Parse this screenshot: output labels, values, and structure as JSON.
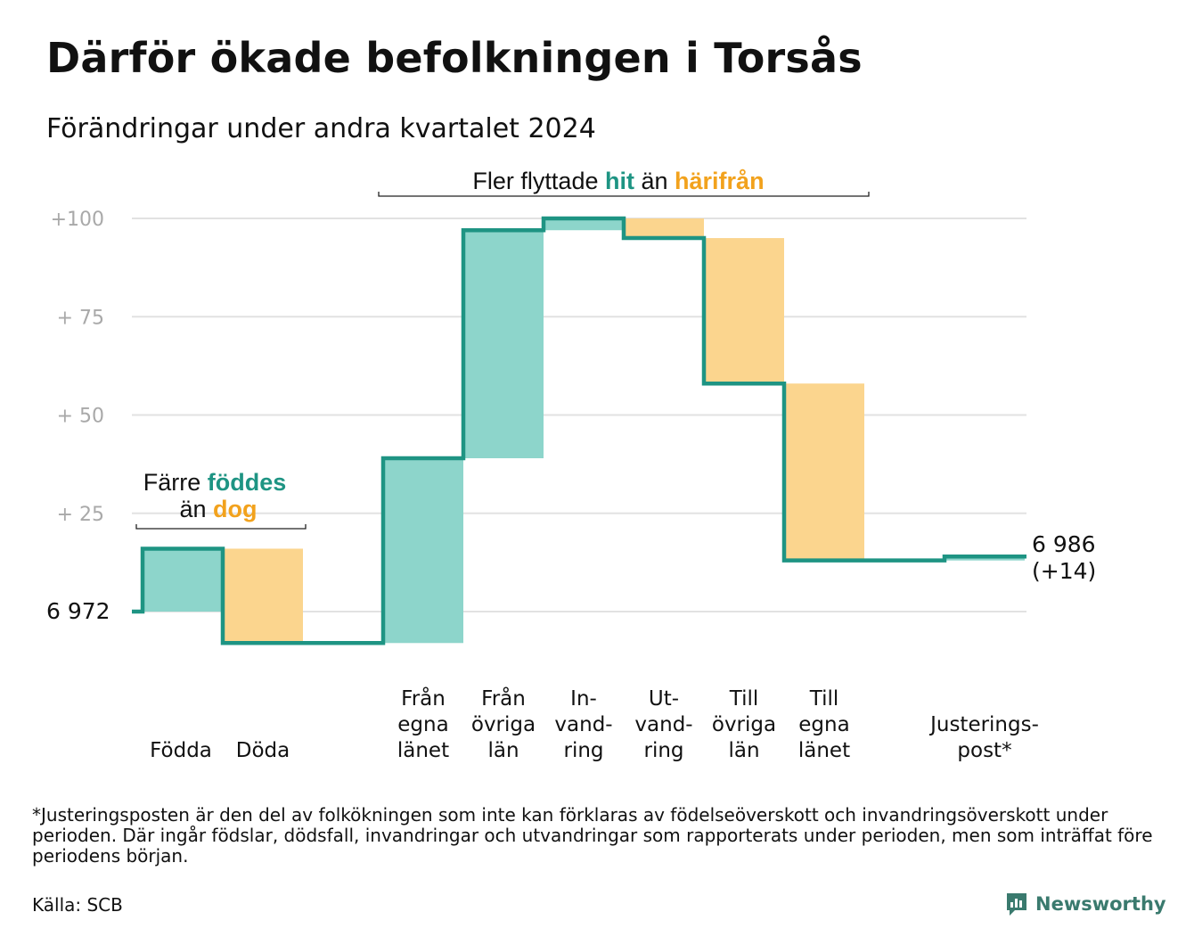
{
  "title": "Därför ökade befolkningen i Torsås",
  "subtitle": "Förändringar under andra kvartalet 2024",
  "footnote": "*Justeringsposten är den del av folkökningen som inte kan förklaras av födelseöverskott och invandringsöverskott under perioden. Där ingår födslar, dödsfall, invandringar och utvandringar som rapporterats under perioden, men som inträffat före periodens början.",
  "source": "Källa: SCB",
  "brand": "Newsworthy",
  "colors": {
    "increase": "#8dd5cb",
    "decrease": "#fbd58e",
    "line": "#1e9483",
    "accent_teal": "#1e9483",
    "accent_orange": "#f2a21d",
    "grid": "#e2e2e2",
    "tick": "#a9a9a9"
  },
  "chart_data": {
    "type": "waterfall",
    "title": "Därför ökade befolkningen i Torsås",
    "subtitle": "Förändringar under andra kvartalet 2024",
    "start": {
      "label": "6  972",
      "value": 6972
    },
    "end": {
      "label_lines": [
        "6 986",
        "(+14)"
      ],
      "value": 6986,
      "change": 14
    },
    "y_ticks": [
      {
        "label": "+100",
        "value": 100
      },
      {
        "label": "+  75",
        "value": 75
      },
      {
        "label": "+  50",
        "value": 50
      },
      {
        "label": "+  25",
        "value": 25
      }
    ],
    "ylim": [
      -15,
      105
    ],
    "grid": true,
    "categories": [
      {
        "label_lines": [
          "Födda"
        ],
        "change": 16
      },
      {
        "label_lines": [
          "Döda"
        ],
        "change": -24
      },
      {
        "label_lines": [
          "Från",
          "egna",
          "länet"
        ],
        "change": 47
      },
      {
        "label_lines": [
          "Från",
          "övriga",
          "län"
        ],
        "change": 58
      },
      {
        "label_lines": [
          "In-",
          "vand-",
          "ring"
        ],
        "change": 3
      },
      {
        "label_lines": [
          "Ut-",
          "vand-",
          "ring"
        ],
        "change": -5
      },
      {
        "label_lines": [
          "Till",
          "övriga",
          "län"
        ],
        "change": -37
      },
      {
        "label_lines": [
          "Till",
          "egna",
          "länet"
        ],
        "change": -45
      },
      {
        "label_lines": [
          "Justerings-",
          "post*"
        ],
        "change": 1
      }
    ],
    "annotations": [
      {
        "id": "births",
        "line1_parts": [
          {
            "text": "Färre ",
            "color": "text"
          },
          {
            "text": "föddes",
            "color": "teal"
          }
        ],
        "line2_parts": [
          {
            "text": "än ",
            "color": "text"
          },
          {
            "text": "dog",
            "color": "orange"
          }
        ]
      },
      {
        "id": "moves",
        "line1_parts": [
          {
            "text": "Fler flyttade ",
            "color": "text"
          },
          {
            "text": "hit",
            "color": "teal"
          },
          {
            "text": " än ",
            "color": "text"
          },
          {
            "text": "härifrån",
            "color": "orange"
          }
        ]
      }
    ]
  }
}
